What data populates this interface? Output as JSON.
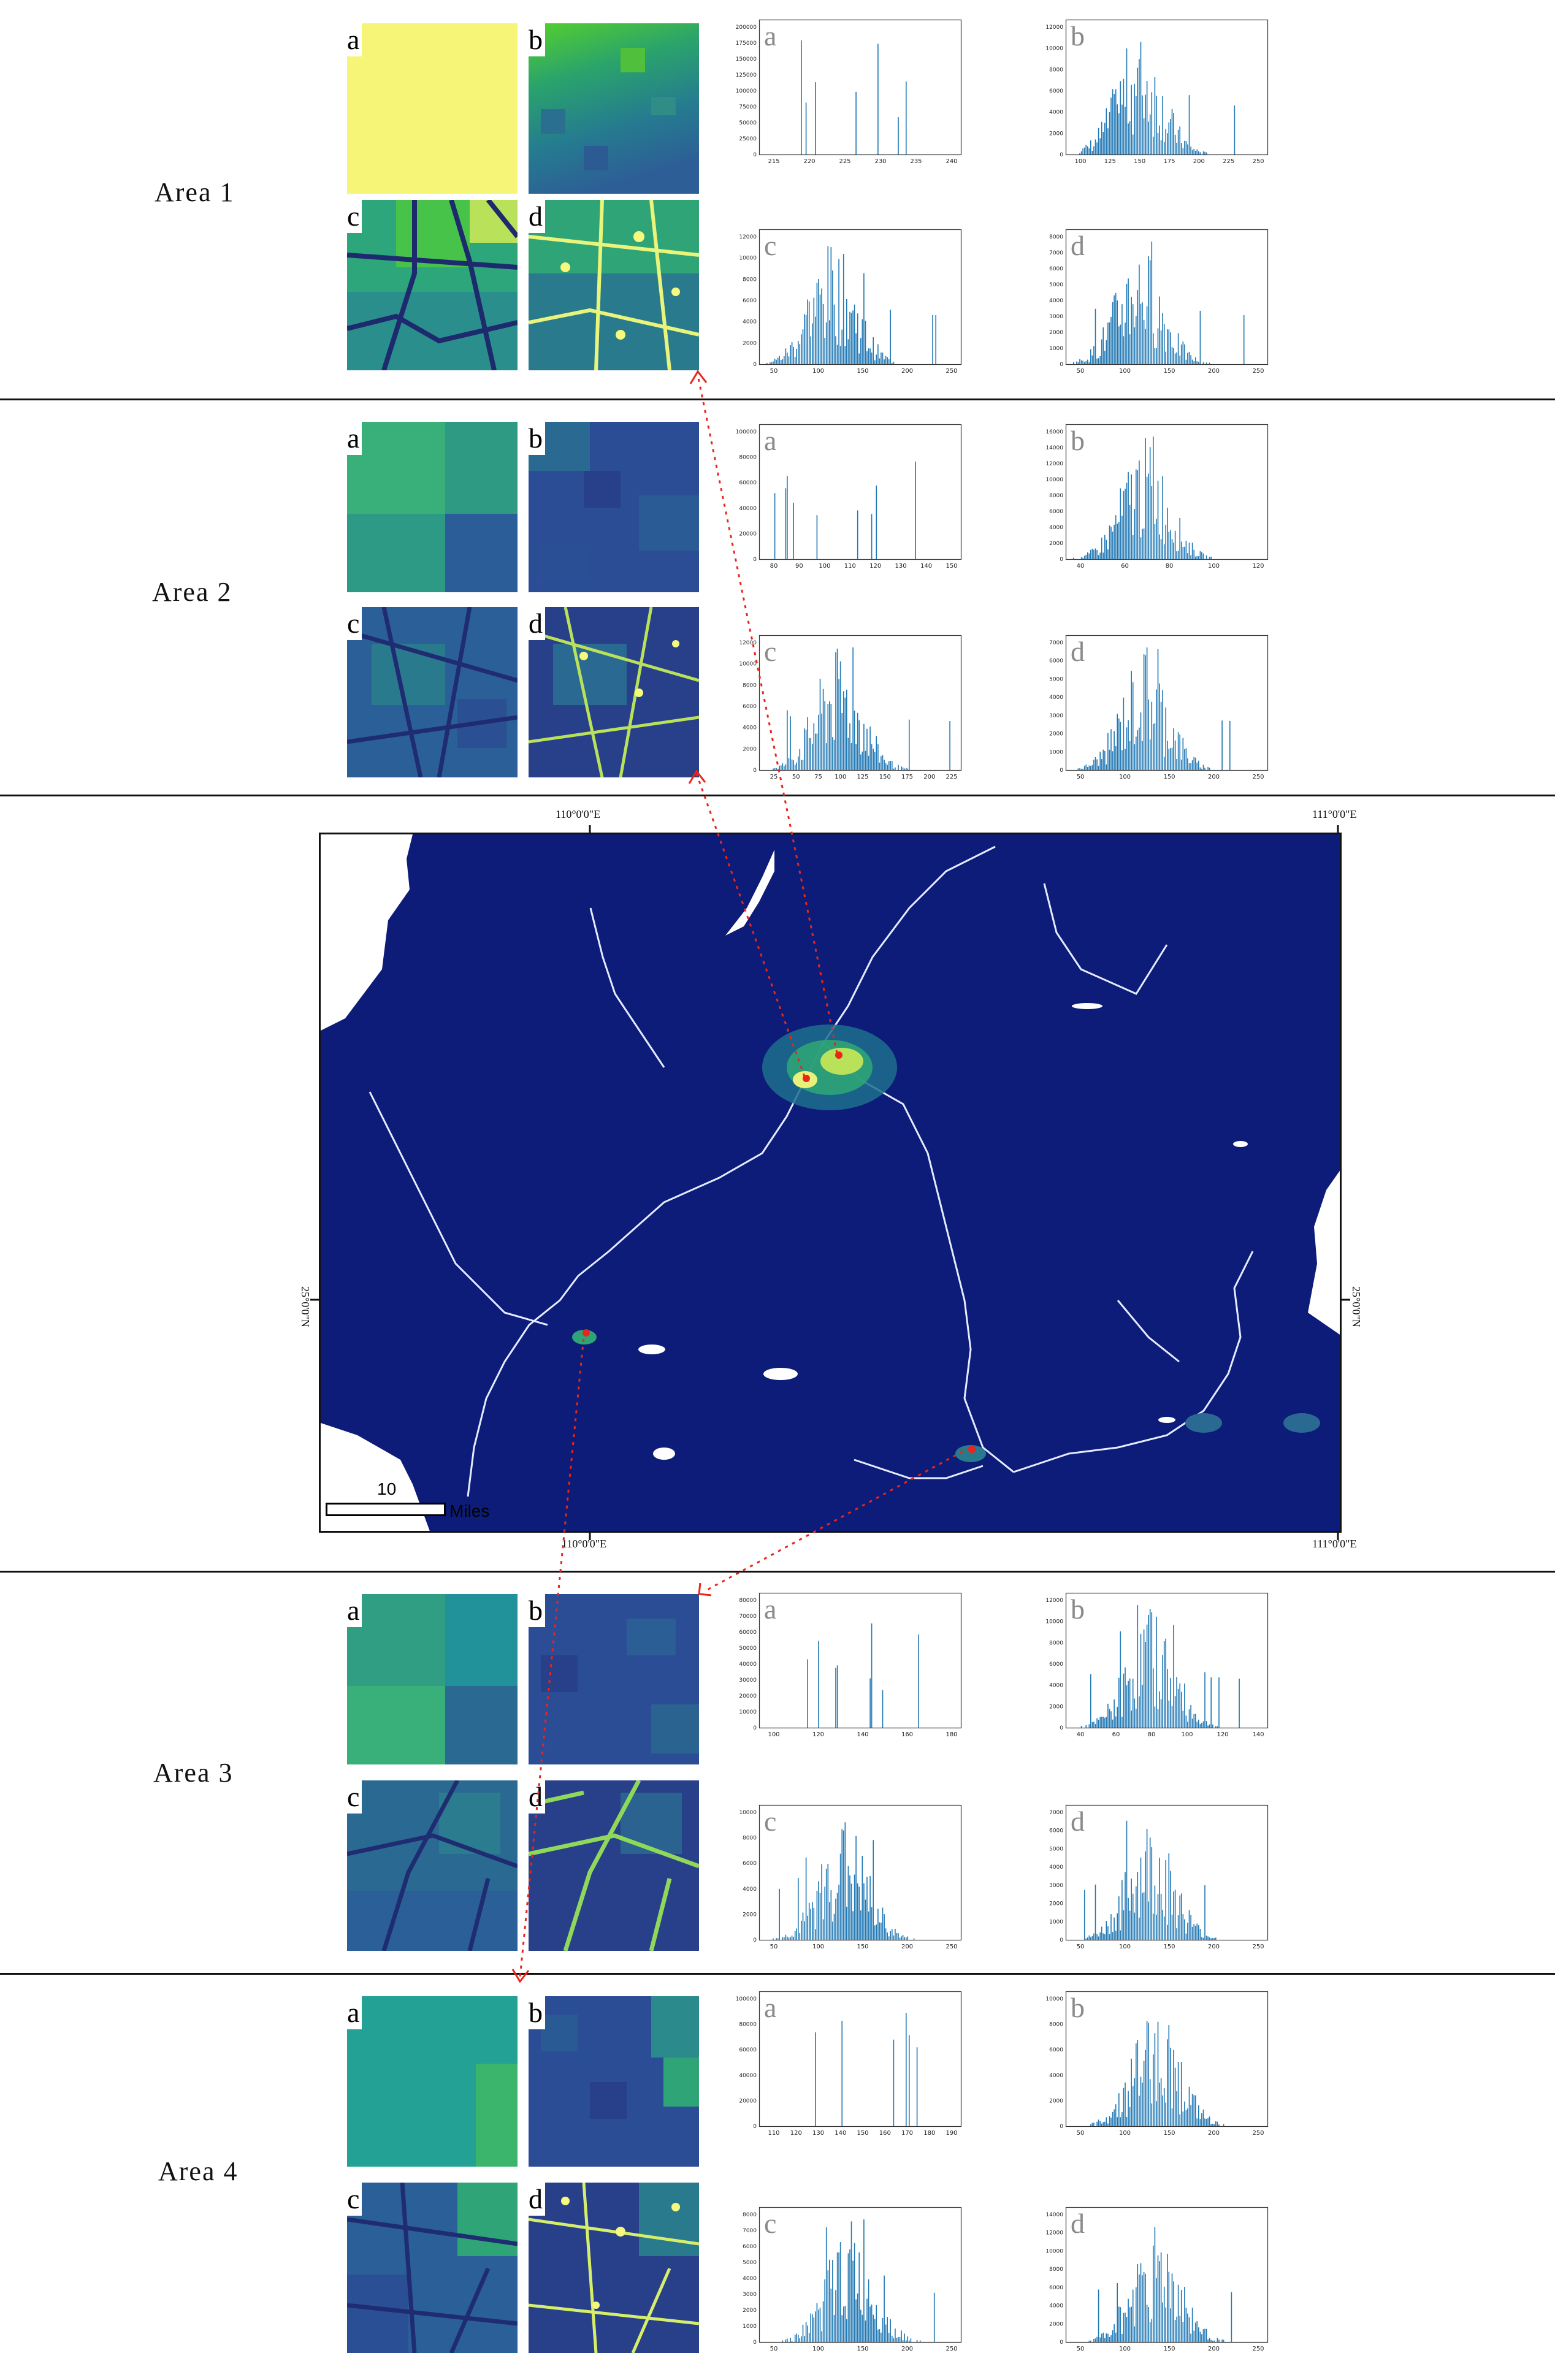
{
  "areas": [
    {
      "label": "Area 1",
      "tile_letters": [
        "a",
        "b",
        "c",
        "d"
      ],
      "histograms": [
        {
          "letter": "a",
          "ticks": [
            "215",
            "220",
            "225",
            "230",
            "235",
            "240"
          ],
          "yticks": [
            "0",
            "25000",
            "50000",
            "75000",
            "100000",
            "125000",
            "150000",
            "175000",
            "200000"
          ]
        },
        {
          "letter": "b",
          "ticks": [
            "100",
            "125",
            "150",
            "175",
            "200",
            "225",
            "250"
          ],
          "yticks": [
            "0",
            "2000",
            "4000",
            "6000",
            "8000",
            "10000",
            "12000"
          ]
        },
        {
          "letter": "c",
          "ticks": [
            "50",
            "100",
            "150",
            "200",
            "250"
          ],
          "yticks": [
            "0",
            "2000",
            "4000",
            "6000",
            "8000",
            "10000",
            "12000"
          ]
        },
        {
          "letter": "d",
          "ticks": [
            "50",
            "100",
            "150",
            "200",
            "250"
          ],
          "yticks": [
            "0",
            "1000",
            "2000",
            "3000",
            "4000",
            "5000",
            "6000",
            "7000",
            "8000"
          ]
        }
      ]
    },
    {
      "label": "Area 2",
      "tile_letters": [
        "a",
        "b",
        "c",
        "d"
      ],
      "histograms": [
        {
          "letter": "a",
          "ticks": [
            "80",
            "90",
            "100",
            "110",
            "120",
            "130",
            "140",
            "150"
          ],
          "yticks": [
            "0",
            "20000",
            "40000",
            "60000",
            "80000",
            "100000"
          ]
        },
        {
          "letter": "b",
          "ticks": [
            "40",
            "60",
            "80",
            "100",
            "120"
          ],
          "yticks": [
            "0",
            "2000",
            "4000",
            "6000",
            "8000",
            "10000",
            "12000",
            "14000",
            "16000"
          ]
        },
        {
          "letter": "c",
          "ticks": [
            "25",
            "50",
            "75",
            "100",
            "125",
            "150",
            "175",
            "200",
            "225"
          ],
          "yticks": [
            "0",
            "2000",
            "4000",
            "6000",
            "8000",
            "10000",
            "12000"
          ]
        },
        {
          "letter": "d",
          "ticks": [
            "50",
            "100",
            "150",
            "200",
            "250"
          ],
          "yticks": [
            "0",
            "1000",
            "2000",
            "3000",
            "4000",
            "5000",
            "6000",
            "7000"
          ]
        }
      ]
    },
    {
      "label": "Area 3",
      "tile_letters": [
        "a",
        "b",
        "c",
        "d"
      ],
      "histograms": [
        {
          "letter": "a",
          "ticks": [
            "100",
            "120",
            "140",
            "160",
            "180"
          ],
          "yticks": [
            "0",
            "10000",
            "20000",
            "30000",
            "40000",
            "50000",
            "60000",
            "70000",
            "80000"
          ]
        },
        {
          "letter": "b",
          "ticks": [
            "40",
            "60",
            "80",
            "100",
            "120",
            "140"
          ],
          "yticks": [
            "0",
            "2000",
            "4000",
            "6000",
            "8000",
            "10000",
            "12000"
          ]
        },
        {
          "letter": "c",
          "ticks": [
            "50",
            "100",
            "150",
            "200",
            "250"
          ],
          "yticks": [
            "0",
            "2000",
            "4000",
            "6000",
            "8000",
            "10000"
          ]
        },
        {
          "letter": "d",
          "ticks": [
            "50",
            "100",
            "150",
            "200",
            "250"
          ],
          "yticks": [
            "0",
            "1000",
            "2000",
            "3000",
            "4000",
            "5000",
            "6000",
            "7000"
          ]
        }
      ]
    },
    {
      "label": "Area 4",
      "tile_letters": [
        "a",
        "b",
        "c",
        "d"
      ],
      "histograms": [
        {
          "letter": "a",
          "ticks": [
            "110",
            "120",
            "130",
            "140",
            "150",
            "160",
            "170",
            "180",
            "190"
          ],
          "yticks": [
            "0",
            "20000",
            "40000",
            "60000",
            "80000",
            "100000"
          ]
        },
        {
          "letter": "b",
          "ticks": [
            "50",
            "100",
            "150",
            "200",
            "250"
          ],
          "yticks": [
            "0",
            "2000",
            "4000",
            "6000",
            "8000",
            "10000"
          ]
        },
        {
          "letter": "c",
          "ticks": [
            "50",
            "100",
            "150",
            "200",
            "250"
          ],
          "yticks": [
            "0",
            "1000",
            "2000",
            "3000",
            "4000",
            "5000",
            "6000",
            "7000",
            "8000"
          ]
        },
        {
          "letter": "d",
          "ticks": [
            "50",
            "100",
            "150",
            "200",
            "250"
          ],
          "yticks": [
            "0",
            "2000",
            "4000",
            "6000",
            "8000",
            "10000",
            "12000",
            "14000"
          ]
        }
      ]
    }
  ],
  "map": {
    "lon_left": "110°0'0\"E",
    "lon_right": "111°0'0\"E",
    "lat": "25°0'0\"N",
    "scale_value": "10",
    "scale_unit": "Miles"
  },
  "colors": {
    "map_background": "#0c1c78",
    "histogram_bar": "#1f77b4",
    "leader_line": "#e8261a"
  }
}
